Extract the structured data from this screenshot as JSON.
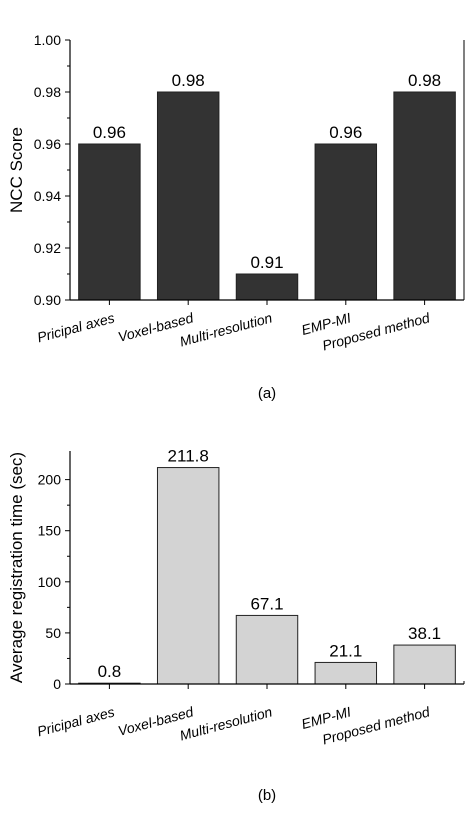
{
  "chart_data": [
    {
      "type": "bar",
      "categories": [
        "Pricipal axes",
        "Voxel-based",
        "Multi-resolution",
        "EMP-MI",
        "Proposed method"
      ],
      "values": [
        0.96,
        0.98,
        0.91,
        0.96,
        0.98
      ],
      "value_labels": [
        "0.96",
        "0.98",
        "0.91",
        "0.96",
        "0.98"
      ],
      "ylabel": "NCC Score",
      "xlabel": "",
      "ylim": [
        0.9,
        1.0
      ],
      "yticks": [
        0.9,
        0.92,
        0.94,
        0.96,
        0.98,
        1.0
      ],
      "ytick_labels": [
        "0.90",
        "0.92",
        "0.94",
        "0.96",
        "0.98",
        "1.00"
      ],
      "bar_color": "#333333",
      "caption": "(a)",
      "grid": false
    },
    {
      "type": "bar",
      "categories": [
        "Pricipal axes",
        "Voxel-based",
        "Multi-resolution",
        "EMP-MI",
        "Proposed method"
      ],
      "values": [
        0.8,
        211.8,
        67.1,
        21.1,
        38.1
      ],
      "value_labels": [
        "0.8",
        "211.8",
        "67.1",
        "21.1",
        "38.1"
      ],
      "ylabel": "Average registration time  (sec)",
      "xlabel": "",
      "ylim": [
        0,
        228
      ],
      "yticks": [
        0,
        50,
        100,
        150,
        200
      ],
      "ytick_labels": [
        "0",
        "50",
        "100",
        "150",
        "200"
      ],
      "bar_color": "#d3d3d3",
      "caption": "(b)",
      "grid": false
    }
  ]
}
